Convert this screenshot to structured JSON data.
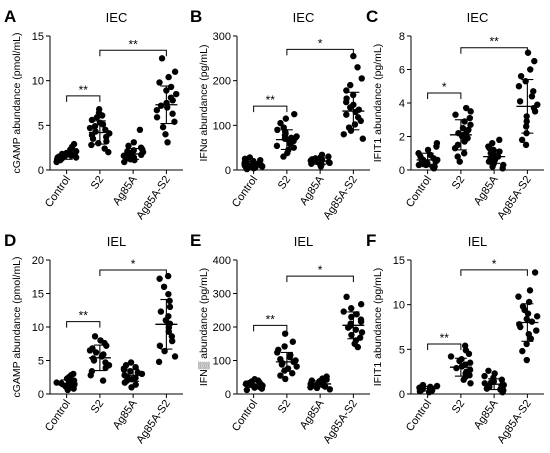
{
  "chart_data": [
    {
      "type": "scatter",
      "panel_letter": "A",
      "title": "IEC",
      "ylabel": "cGAMP abundance (pmol/mL)",
      "ylim": [
        0,
        15
      ],
      "yticks": [
        0,
        5,
        10,
        15
      ],
      "categories": [
        "Control",
        "S2",
        "Ag85A",
        "Ag85A-S2"
      ],
      "groups": [
        {
          "name": "Control",
          "mean": 1.6,
          "sd": 0.4,
          "values": [
            0.9,
            1.1,
            1.2,
            1.3,
            1.3,
            1.4,
            1.4,
            1.5,
            1.5,
            1.6,
            1.6,
            1.7,
            1.7,
            1.8,
            1.9,
            2.0,
            2.1,
            2.3,
            2.6,
            2.9
          ]
        },
        {
          "name": "S2",
          "mean": 4.2,
          "sd": 1.3,
          "values": [
            2.0,
            2.4,
            2.8,
            3.0,
            3.2,
            3.5,
            3.7,
            3.9,
            4.1,
            4.3,
            4.5,
            4.7,
            4.9,
            5.1,
            5.3,
            5.6,
            5.9,
            6.1,
            6.4,
            6.8
          ]
        },
        {
          "name": "Ag85A",
          "mean": 1.8,
          "sd": 0.6,
          "values": [
            0.9,
            1.1,
            1.2,
            1.3,
            1.4,
            1.5,
            1.6,
            1.7,
            1.8,
            1.9,
            2.0,
            2.1,
            2.2,
            2.3,
            2.5,
            2.7,
            3.1,
            4.5
          ]
        },
        {
          "name": "Ag85A-S2",
          "mean": 7.3,
          "sd": 2.1,
          "values": [
            3.1,
            4.0,
            4.8,
            5.4,
            5.9,
            6.3,
            6.7,
            7.0,
            7.2,
            7.5,
            7.8,
            8.1,
            8.5,
            8.9,
            9.3,
            9.8,
            10.4,
            11.0,
            12.5
          ]
        }
      ],
      "brackets": [
        {
          "from": 0,
          "to": 1,
          "y": 8.3,
          "label": "**"
        },
        {
          "from": 1,
          "to": 3,
          "y": 13.4,
          "label": "**"
        }
      ]
    },
    {
      "type": "scatter",
      "panel_letter": "B",
      "title": "IEC",
      "ylabel": "IFNα abundance (pg/mL)",
      "ylim": [
        0,
        300
      ],
      "yticks": [
        0,
        100,
        200,
        300
      ],
      "categories": [
        "Control",
        "S2",
        "Ag85A",
        "Ag85A-S2"
      ],
      "groups": [
        {
          "name": "Control",
          "mean": 12,
          "sd": 7,
          "values": [
            2,
            4,
            5,
            6,
            7,
            8,
            9,
            10,
            11,
            12,
            12,
            13,
            14,
            15,
            16,
            18,
            20,
            22,
            25,
            28
          ]
        },
        {
          "name": "S2",
          "mean": 68,
          "sd": 22,
          "values": [
            30,
            38,
            45,
            50,
            54,
            58,
            62,
            65,
            68,
            70,
            72,
            75,
            78,
            82,
            86,
            90,
            95,
            105,
            115,
            125
          ]
        },
        {
          "name": "Ag85A",
          "mean": 20,
          "sd": 7,
          "values": [
            8,
            10,
            12,
            14,
            15,
            16,
            17,
            18,
            19,
            20,
            21,
            22,
            23,
            24,
            26,
            28,
            30,
            34
          ]
        },
        {
          "name": "Ag85A-S2",
          "mean": 132,
          "sd": 42,
          "values": [
            70,
            80,
            88,
            95,
            102,
            110,
            118,
            124,
            130,
            135,
            140,
            146,
            152,
            160,
            168,
            178,
            190,
            205,
            230,
            255
          ]
        }
      ],
      "brackets": [
        {
          "from": 0,
          "to": 1,
          "y": 143,
          "label": "**"
        },
        {
          "from": 1,
          "to": 3,
          "y": 270,
          "label": "*"
        }
      ]
    },
    {
      "type": "scatter",
      "panel_letter": "C",
      "title": "IEC",
      "ylabel": "IFIT1 abundance (pg/mL)",
      "ylim": [
        0,
        8
      ],
      "yticks": [
        0,
        2,
        4,
        6,
        8
      ],
      "categories": [
        "Control",
        "S2",
        "Ag85A",
        "Ag85A-S2"
      ],
      "groups": [
        {
          "name": "Control",
          "mean": 0.6,
          "sd": 0.4,
          "values": [
            0.1,
            0.2,
            0.2,
            0.3,
            0.3,
            0.4,
            0.4,
            0.5,
            0.5,
            0.6,
            0.6,
            0.7,
            0.8,
            0.9,
            1.0,
            1.2,
            1.4,
            1.6
          ]
        },
        {
          "name": "S2",
          "mean": 2.1,
          "sd": 0.9,
          "values": [
            0.5,
            0.8,
            1.0,
            1.3,
            1.5,
            1.7,
            1.9,
            2.0,
            2.1,
            2.2,
            2.3,
            2.4,
            2.5,
            2.7,
            2.9,
            3.1,
            3.3,
            3.5,
            3.7
          ]
        },
        {
          "name": "Ag85A",
          "mean": 0.8,
          "sd": 0.4,
          "values": [
            0.1,
            0.2,
            0.3,
            0.4,
            0.5,
            0.6,
            0.7,
            0.8,
            0.9,
            1.0,
            1.1,
            1.2,
            1.3,
            1.4,
            1.6,
            1.8
          ]
        },
        {
          "name": "Ag85A-S2",
          "mean": 3.8,
          "sd": 1.6,
          "values": [
            1.5,
            1.8,
            2.2,
            2.6,
            2.9,
            3.2,
            3.5,
            3.7,
            3.9,
            4.1,
            4.4,
            4.7,
            5.0,
            5.3,
            5.6,
            6.0,
            6.5,
            7.0
          ]
        }
      ],
      "brackets": [
        {
          "from": 0,
          "to": 1,
          "y": 4.6,
          "label": "*"
        },
        {
          "from": 1,
          "to": 3,
          "y": 7.3,
          "label": "**"
        }
      ]
    },
    {
      "type": "scatter",
      "panel_letter": "D",
      "title": "IEL",
      "ylabel": "cGAMP abundance (pmol/mL)",
      "ylim": [
        0,
        20
      ],
      "yticks": [
        0,
        5,
        10,
        15,
        20
      ],
      "categories": [
        "Control",
        "S2",
        "Ag85A",
        "Ag85A-S2"
      ],
      "groups": [
        {
          "name": "Control",
          "mean": 1.6,
          "sd": 0.5,
          "values": [
            0.6,
            0.8,
            1.0,
            1.1,
            1.2,
            1.3,
            1.4,
            1.5,
            1.6,
            1.7,
            1.8,
            1.9,
            2.0,
            2.1,
            2.3,
            2.5,
            2.8,
            3.0
          ]
        },
        {
          "name": "S2",
          "mean": 5.4,
          "sd": 1.9,
          "values": [
            2.0,
            2.8,
            3.4,
            3.9,
            4.3,
            4.7,
            5.0,
            5.3,
            5.6,
            5.9,
            6.2,
            6.5,
            6.8,
            7.2,
            7.6,
            8.0,
            8.6
          ]
        },
        {
          "name": "Ag85A",
          "mean": 2.8,
          "sd": 0.9,
          "values": [
            1.0,
            1.4,
            1.7,
            2.0,
            2.2,
            2.4,
            2.6,
            2.8,
            3.0,
            3.2,
            3.4,
            3.6,
            3.8,
            4.0,
            4.3,
            4.7
          ]
        },
        {
          "name": "Ag85A-S2",
          "mean": 10.4,
          "sd": 3.7,
          "values": [
            4.8,
            5.6,
            6.4,
            7.2,
            7.9,
            8.6,
            9.3,
            9.9,
            10.5,
            11.0,
            11.6,
            12.3,
            13.0,
            13.9,
            14.9,
            16.0,
            17.2,
            17.6
          ]
        }
      ],
      "brackets": [
        {
          "from": 0,
          "to": 1,
          "y": 10.8,
          "label": "**"
        },
        {
          "from": 1,
          "to": 3,
          "y": 18.5,
          "label": "*"
        }
      ]
    },
    {
      "type": "scatter",
      "panel_letter": "E",
      "title": "IEL",
      "ylabel": "IFN▒ abundance (pg/mL)",
      "ylim": [
        0,
        400
      ],
      "yticks": [
        0,
        100,
        200,
        300,
        400
      ],
      "categories": [
        "Control",
        "S2",
        "Ag85A",
        "Ag85A-S2"
      ],
      "groups": [
        {
          "name": "Control",
          "mean": 28,
          "sd": 8,
          "values": [
            12,
            16,
            19,
            21,
            23,
            25,
            26,
            28,
            29,
            30,
            31,
            33,
            35,
            37,
            40,
            44
          ]
        },
        {
          "name": "S2",
          "mean": 96,
          "sd": 28,
          "values": [
            45,
            55,
            62,
            70,
            76,
            82,
            88,
            92,
            96,
            100,
            104,
            110,
            116,
            124,
            132,
            142,
            156,
            180
          ]
        },
        {
          "name": "Ag85A",
          "mean": 30,
          "sd": 9,
          "values": [
            14,
            18,
            20,
            22,
            24,
            26,
            28,
            30,
            32,
            34,
            36,
            38,
            40,
            43,
            46,
            52
          ]
        },
        {
          "name": "Ag85A-S2",
          "mean": 205,
          "sd": 40,
          "values": [
            140,
            150,
            160,
            168,
            176,
            184,
            192,
            198,
            204,
            210,
            216,
            222,
            230,
            238,
            246,
            256,
            268,
            290
          ]
        }
      ],
      "brackets": [
        {
          "from": 0,
          "to": 1,
          "y": 205,
          "label": "**"
        },
        {
          "from": 1,
          "to": 3,
          "y": 352,
          "label": "*"
        }
      ]
    },
    {
      "type": "scatter",
      "panel_letter": "F",
      "title": "IEL",
      "ylabel": "IFIT1 abundance (pg/mL)",
      "ylim": [
        0,
        15
      ],
      "yticks": [
        0,
        5,
        10,
        15
      ],
      "categories": [
        "Control",
        "S2",
        "Ag85A",
        "Ag85A-S2"
      ],
      "groups": [
        {
          "name": "Control",
          "mean": 0.6,
          "sd": 0.25,
          "values": [
            0.2,
            0.3,
            0.4,
            0.4,
            0.5,
            0.5,
            0.6,
            0.6,
            0.7,
            0.7,
            0.8,
            0.8,
            0.9,
            1.0
          ]
        },
        {
          "name": "S2",
          "mean": 3.0,
          "sd": 1.0,
          "values": [
            1.2,
            1.6,
            1.9,
            2.1,
            2.3,
            2.5,
            2.7,
            2.9,
            3.1,
            3.3,
            3.5,
            3.7,
            3.9,
            4.2,
            4.5,
            4.9,
            5.4
          ]
        },
        {
          "name": "Ag85A",
          "mean": 1.1,
          "sd": 0.6,
          "values": [
            0.2,
            0.4,
            0.5,
            0.6,
            0.8,
            0.9,
            1.0,
            1.1,
            1.2,
            1.3,
            1.4,
            1.6,
            1.8,
            2.0,
            2.3,
            2.6
          ]
        },
        {
          "name": "Ag85A-S2",
          "mean": 8.0,
          "sd": 2.1,
          "values": [
            3.8,
            4.8,
            5.6,
            6.2,
            6.7,
            7.1,
            7.5,
            7.8,
            8.1,
            8.4,
            8.7,
            9.0,
            9.4,
            9.8,
            10.3,
            10.9,
            11.6,
            13.6
          ]
        }
      ],
      "brackets": [
        {
          "from": 0,
          "to": 1,
          "y": 5.6,
          "label": "**"
        },
        {
          "from": 1,
          "to": 3,
          "y": 13.9,
          "label": "*"
        }
      ]
    }
  ]
}
